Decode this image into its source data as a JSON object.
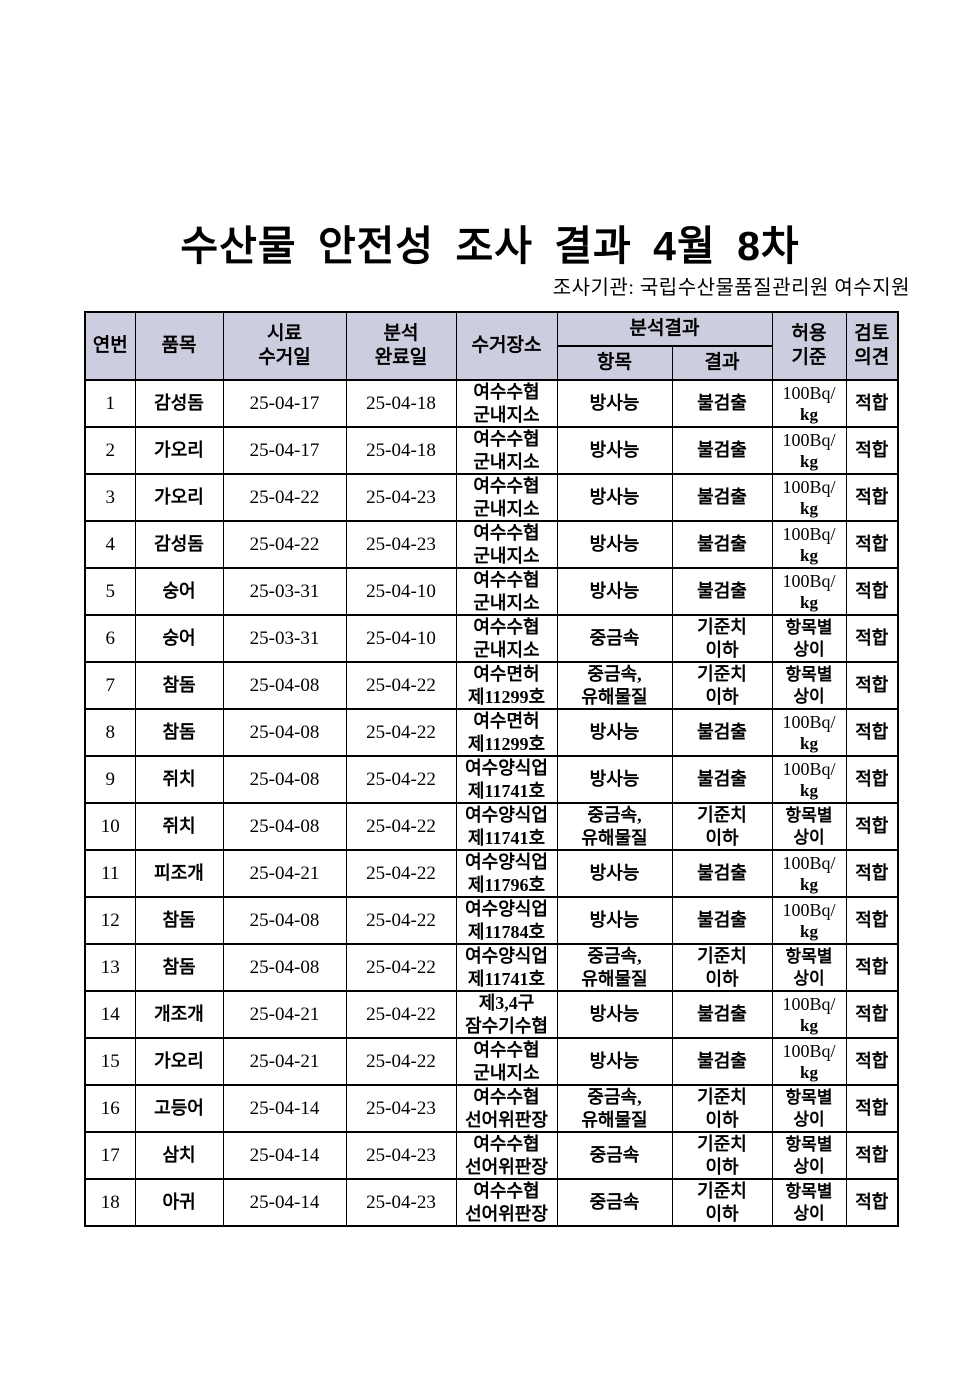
{
  "page": {
    "title": "수산물 안전성 조사 결과 4월 8차",
    "agency_label": "조사기관: 국립수산물품질관리원 여수지원"
  },
  "colors": {
    "header_bg": "#cdcde0",
    "border": "#000000",
    "text": "#000000",
    "page_bg": "#ffffff"
  },
  "table": {
    "header": {
      "no": "연번",
      "item": "품목",
      "collect_date": "시료\n수거일",
      "complete_date": "분석\n완료일",
      "place": "수거장소",
      "analysis_group": "분석결과",
      "analysis_item": "항목",
      "analysis_result": "결과",
      "limit": "허용\n기준",
      "opinion": "검토\n의견"
    },
    "rows": [
      [
        "1",
        "감성돔",
        "25-04-17",
        "25-04-18",
        "여수수협\n군내지소",
        "방사능",
        "불검출",
        "100Bq/\nkg",
        "적합"
      ],
      [
        "2",
        "가오리",
        "25-04-17",
        "25-04-18",
        "여수수협\n군내지소",
        "방사능",
        "불검출",
        "100Bq/\nkg",
        "적합"
      ],
      [
        "3",
        "가오리",
        "25-04-22",
        "25-04-23",
        "여수수협\n군내지소",
        "방사능",
        "불검출",
        "100Bq/\nkg",
        "적합"
      ],
      [
        "4",
        "감성돔",
        "25-04-22",
        "25-04-23",
        "여수수협\n군내지소",
        "방사능",
        "불검출",
        "100Bq/\nkg",
        "적합"
      ],
      [
        "5",
        "숭어",
        "25-03-31",
        "25-04-10",
        "여수수협\n군내지소",
        "방사능",
        "불검출",
        "100Bq/\nkg",
        "적합"
      ],
      [
        "6",
        "숭어",
        "25-03-31",
        "25-04-10",
        "여수수협\n군내지소",
        "중금속",
        "기준치\n이하",
        "항목별\n상이",
        "적합"
      ],
      [
        "7",
        "참돔",
        "25-04-08",
        "25-04-22",
        "여수면허\n제11299호",
        "중금속,\n유해물질",
        "기준치\n이하",
        "항목별\n상이",
        "적합"
      ],
      [
        "8",
        "참돔",
        "25-04-08",
        "25-04-22",
        "여수면허\n제11299호",
        "방사능",
        "불검출",
        "100Bq/\nkg",
        "적합"
      ],
      [
        "9",
        "쥐치",
        "25-04-08",
        "25-04-22",
        "여수양식업\n제11741호",
        "방사능",
        "불검출",
        "100Bq/\nkg",
        "적합"
      ],
      [
        "10",
        "쥐치",
        "25-04-08",
        "25-04-22",
        "여수양식업\n제11741호",
        "중금속,\n유해물질",
        "기준치\n이하",
        "항목별\n상이",
        "적합"
      ],
      [
        "11",
        "피조개",
        "25-04-21",
        "25-04-22",
        "여수양식업\n제11796호",
        "방사능",
        "불검출",
        "100Bq/\nkg",
        "적합"
      ],
      [
        "12",
        "참돔",
        "25-04-08",
        "25-04-22",
        "여수양식업\n제11784호",
        "방사능",
        "불검출",
        "100Bq/\nkg",
        "적합"
      ],
      [
        "13",
        "참돔",
        "25-04-08",
        "25-04-22",
        "여수양식업\n제11741호",
        "중금속,\n유해물질",
        "기준치\n이하",
        "항목별\n상이",
        "적합"
      ],
      [
        "14",
        "개조개",
        "25-04-21",
        "25-04-22",
        "제3,4구\n잠수기수협",
        "방사능",
        "불검출",
        "100Bq/\nkg",
        "적합"
      ],
      [
        "15",
        "가오리",
        "25-04-21",
        "25-04-22",
        "여수수협\n군내지소",
        "방사능",
        "불검출",
        "100Bq/\nkg",
        "적합"
      ],
      [
        "16",
        "고등어",
        "25-04-14",
        "25-04-23",
        "여수수협\n선어위판장",
        "중금속,\n유해물질",
        "기준치\n이하",
        "항목별\n상이",
        "적합"
      ],
      [
        "17",
        "삼치",
        "25-04-14",
        "25-04-23",
        "여수수협\n선어위판장",
        "중금속",
        "기준치\n이하",
        "항목별\n상이",
        "적합"
      ],
      [
        "18",
        "아귀",
        "25-04-14",
        "25-04-23",
        "여수수협\n선어위판장",
        "중금속",
        "기준치\n이하",
        "항목별\n상이",
        "적합"
      ]
    ]
  }
}
